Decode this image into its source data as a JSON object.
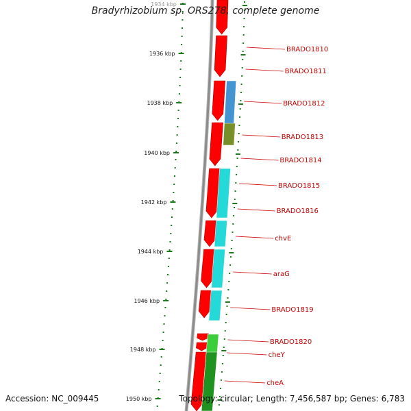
{
  "title": "Bradyrhizobium sp. ORS278, complete genome",
  "footer": {
    "accession": "Accession: NC_009445",
    "summary": "Topology: circular; Length: 7,456,587 bp; Genes: 6,783"
  },
  "colors": {
    "backbone": "#8c8c8c",
    "tick": "#1a7a1a",
    "forward_gene": "#ff0000",
    "reverse_gene": "#1ad7d7",
    "label_line": "#cc0000"
  },
  "scale": {
    "unit": "kbp",
    "labels": [
      "1934 kbp",
      "1936 kbp",
      "1938 kbp",
      "1940 kbp",
      "1942 kbp",
      "1944 kbp",
      "1946 kbp",
      "1948 kbp",
      "1950 kbp"
    ]
  },
  "genes": [
    {
      "name": "BRADO1810"
    },
    {
      "name": "BRADO1811"
    },
    {
      "name": "BRADO1812"
    },
    {
      "name": "BRADO1813"
    },
    {
      "name": "BRADO1814"
    },
    {
      "name": "BRADO1815"
    },
    {
      "name": "BRADO1816"
    },
    {
      "name": "chvE"
    },
    {
      "name": "araG"
    },
    {
      "name": "BRADO1819"
    },
    {
      "name": "BRADO1820"
    },
    {
      "name": "cheY"
    },
    {
      "name": "cheA"
    }
  ]
}
